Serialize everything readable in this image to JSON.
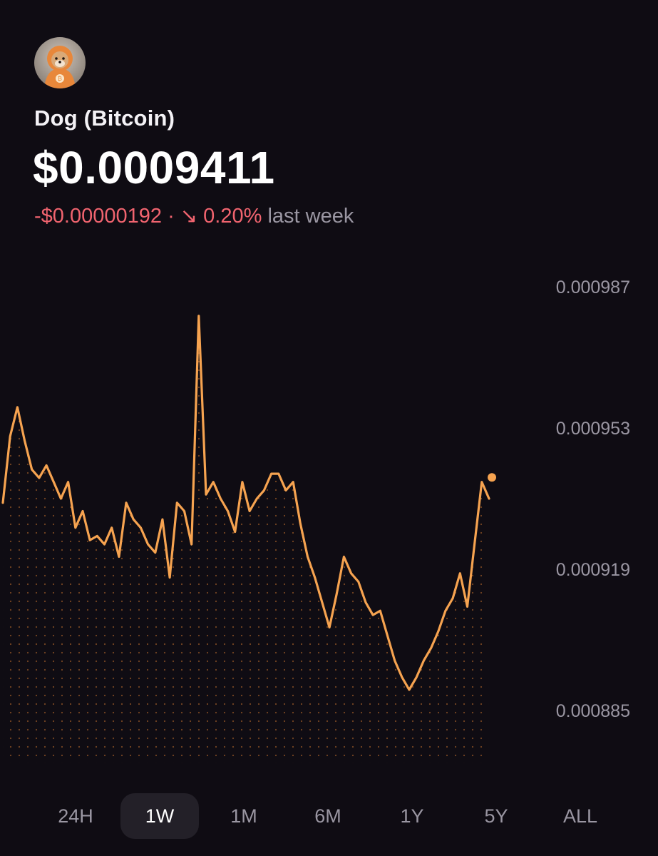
{
  "coin": {
    "name": "Dog (Bitcoin)",
    "price": "$0.0009411",
    "change_abs": "-$0.00000192",
    "separator": "·",
    "change_pct": "↘ 0.20%",
    "period": "last week",
    "avatar_icon": "dog-avatar-icon"
  },
  "colors": {
    "background": "#0f0c13",
    "line": "#f6a350",
    "negative": "#f1646f",
    "muted": "#9a96a2",
    "active_tab_bg": "#232028"
  },
  "chart_data": {
    "type": "line",
    "title": "",
    "xlabel": "",
    "ylabel": "",
    "y_ticks": [
      "0.000987",
      "0.000953",
      "0.000919",
      "0.000885"
    ],
    "ylim": [
      0.00087,
      0.000987
    ],
    "grid": false,
    "y_axis_side": "right",
    "values": [
      0.000935,
      0.000951,
      0.000958,
      0.00095,
      0.000943,
      0.000941,
      0.000944,
      0.00094,
      0.000936,
      0.00094,
      0.000929,
      0.000933,
      0.000926,
      0.000927,
      0.000925,
      0.000929,
      0.000922,
      0.000935,
      0.000931,
      0.000929,
      0.000925,
      0.000923,
      0.000931,
      0.000917,
      0.000935,
      0.000933,
      0.000925,
      0.00098,
      0.000937,
      0.00094,
      0.000936,
      0.000933,
      0.000928,
      0.00094,
      0.000933,
      0.000936,
      0.000938,
      0.000942,
      0.000942,
      0.000938,
      0.00094,
      0.00093,
      0.000922,
      0.000917,
      0.000911,
      0.000905,
      0.000913,
      0.000922,
      0.000918,
      0.000916,
      0.000911,
      0.000908,
      0.000909,
      0.000903,
      0.000897,
      0.000893,
      0.00089,
      0.000893,
      0.000897,
      0.0009,
      0.000904,
      0.000909,
      0.000912,
      0.000918,
      0.00091,
      0.000925,
      0.00094,
      0.000936
    ],
    "last_value": 0.0009411
  },
  "time_ranges": [
    {
      "label": "24H",
      "active": false
    },
    {
      "label": "1W",
      "active": true
    },
    {
      "label": "1M",
      "active": false
    },
    {
      "label": "6M",
      "active": false
    },
    {
      "label": "1Y",
      "active": false
    },
    {
      "label": "5Y",
      "active": false
    },
    {
      "label": "ALL",
      "active": false
    }
  ]
}
